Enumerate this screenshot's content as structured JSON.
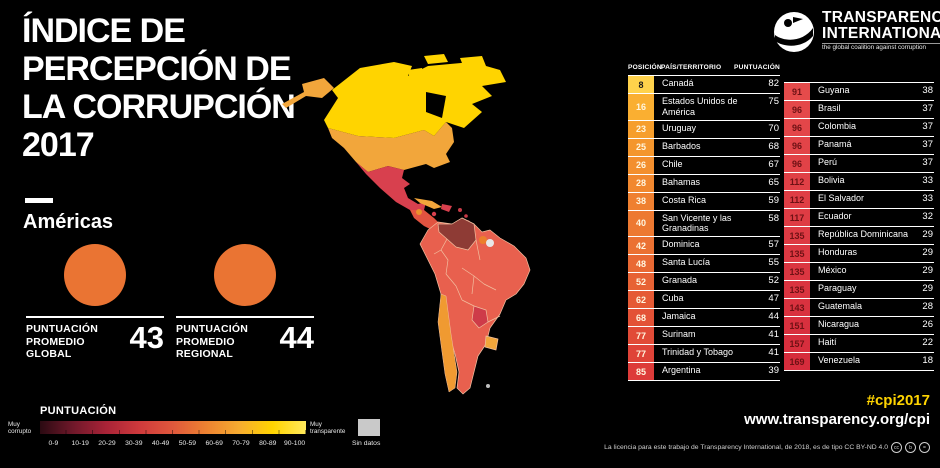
{
  "page": {
    "background": "#000000",
    "accent_yellow": "#FFD400"
  },
  "header": {
    "title_lines": [
      "ÍNDICE DE",
      "PERCEPCIÓN DE",
      "LA CORRUPCIÓN",
      "2017"
    ],
    "region": "Américas"
  },
  "logo": {
    "name1": "TRANSPARENCY",
    "name2": "INTERNATIONAL",
    "tagline": "the global coalition against corruption"
  },
  "averages": [
    {
      "label_lines": [
        "PUNTUACIÓN",
        "PROMEDIO",
        "GLOBAL"
      ],
      "value": "43",
      "circle_color": "#EA7433"
    },
    {
      "label_lines": [
        "PUNTUACIÓN",
        "PROMEDIO",
        "REGIONAL"
      ],
      "value": "44",
      "circle_color": "#EA7433"
    }
  ],
  "table": {
    "headers": {
      "position": "POSICIÓN",
      "country": "PAÍS/TERRITORIO",
      "score": "PUNTUACIÓN"
    },
    "left_rows": [
      {
        "pos": "8",
        "country": "Canadá",
        "score": "82",
        "bg": "#FFD24B",
        "tc": "#1a1a1a"
      },
      {
        "pos": "16",
        "country": "Estados Unidos de América",
        "score": "75",
        "bg": "#FAAF31",
        "tc": "#FFF6DF"
      },
      {
        "pos": "23",
        "country": "Uruguay",
        "score": "70",
        "bg": "#F69E2C",
        "tc": "#FFF6DF"
      },
      {
        "pos": "25",
        "country": "Barbados",
        "score": "68",
        "bg": "#F4962D",
        "tc": "#FFF6DF"
      },
      {
        "pos": "26",
        "country": "Chile",
        "score": "67",
        "bg": "#F38F2E",
        "tc": "#FFF6DF"
      },
      {
        "pos": "28",
        "country": "Bahamas",
        "score": "65",
        "bg": "#F1882F",
        "tc": "#FFF6DF"
      },
      {
        "pos": "38",
        "country": "Costa Rica",
        "score": "59",
        "bg": "#EF8030",
        "tc": "#FFF6DF"
      },
      {
        "pos": "40",
        "country": "San Vicente y las Granadinas",
        "score": "58",
        "bg": "#ED7931",
        "tc": "#FFF6DF"
      },
      {
        "pos": "42",
        "country": "Dominica",
        "score": "57",
        "bg": "#EB7132",
        "tc": "#FFF6DF"
      },
      {
        "pos": "48",
        "country": "Santa Lucía",
        "score": "55",
        "bg": "#E96933",
        "tc": "#FFF6DF"
      },
      {
        "pos": "52",
        "country": "Granada",
        "score": "52",
        "bg": "#E76234",
        "tc": "#FFF6DF"
      },
      {
        "pos": "62",
        "country": "Cuba",
        "score": "47",
        "bg": "#E55A35",
        "tc": "#FFF6DF"
      },
      {
        "pos": "68",
        "country": "Jamaica",
        "score": "44",
        "bg": "#E35236",
        "tc": "#FFF6DF"
      },
      {
        "pos": "77",
        "country": "Surinam",
        "score": "41",
        "bg": "#E14B37",
        "tc": "#FFF6DF"
      },
      {
        "pos": "77",
        "country": "Trinidad y Tobago",
        "score": "41",
        "bg": "#DF4338",
        "tc": "#FFF6DF"
      },
      {
        "pos": "85",
        "country": "Argentina",
        "score": "39",
        "bg": "#DD3B39",
        "tc": "#FFF6DF"
      }
    ],
    "right_rows": [
      {
        "pos": "91",
        "country": "Guyana",
        "score": "38",
        "bg": "#E54B4B",
        "tc": "#6E1114"
      },
      {
        "pos": "96",
        "country": "Brasil",
        "score": "37",
        "bg": "#E4484A",
        "tc": "#6E1114"
      },
      {
        "pos": "96",
        "country": "Colombia",
        "score": "37",
        "bg": "#E34649",
        "tc": "#6E1114"
      },
      {
        "pos": "96",
        "country": "Panamá",
        "score": "37",
        "bg": "#E24448",
        "tc": "#6E1114"
      },
      {
        "pos": "96",
        "country": "Perú",
        "score": "37",
        "bg": "#E14247",
        "tc": "#6E1114"
      },
      {
        "pos": "112",
        "country": "Bolivia",
        "score": "33",
        "bg": "#E04046",
        "tc": "#6E1114"
      },
      {
        "pos": "112",
        "country": "El Salvador",
        "score": "33",
        "bg": "#DF3E45",
        "tc": "#6E1114"
      },
      {
        "pos": "117",
        "country": "Ecuador",
        "score": "32",
        "bg": "#DE3C44",
        "tc": "#6E1114"
      },
      {
        "pos": "135",
        "country": "República Dominicana",
        "score": "29",
        "bg": "#DD3A43",
        "tc": "#6E1114"
      },
      {
        "pos": "135",
        "country": "Honduras",
        "score": "29",
        "bg": "#DC3842",
        "tc": "#6E1114"
      },
      {
        "pos": "135",
        "country": "México",
        "score": "29",
        "bg": "#DB3641",
        "tc": "#6E1114"
      },
      {
        "pos": "135",
        "country": "Paraguay",
        "score": "29",
        "bg": "#DA3440",
        "tc": "#6E1114"
      },
      {
        "pos": "143",
        "country": "Guatemala",
        "score": "28",
        "bg": "#D9323F",
        "tc": "#6E1114"
      },
      {
        "pos": "151",
        "country": "Nicaragua",
        "score": "26",
        "bg": "#D8303E",
        "tc": "#6E1114"
      },
      {
        "pos": "157",
        "country": "Haití",
        "score": "22",
        "bg": "#D72E3D",
        "tc": "#6E1114"
      },
      {
        "pos": "169",
        "country": "Venezuela",
        "score": "18",
        "bg": "#D62C3C",
        "tc": "#6E1114"
      }
    ]
  },
  "legend": {
    "title": "PUNTUACIÓN",
    "left_label_lines": [
      "Muy",
      "corrupto"
    ],
    "right_label_lines": [
      "Muy",
      "transparente"
    ],
    "no_data_label": "Sin datos",
    "no_data_color": "#C9C9C9",
    "gradient_stops": [
      "#2b0a12",
      "#70182a",
      "#a92337",
      "#cf3a3c",
      "#e0583c",
      "#ed8231",
      "#f6ac30",
      "#ffd400",
      "#ffe95c"
    ],
    "ticks": [
      "0-9",
      "10-19",
      "20-29",
      "30-39",
      "40-49",
      "50-59",
      "60-69",
      "70-79",
      "80-89",
      "90-100"
    ]
  },
  "footer": {
    "hashtag": "#cpi2017",
    "hashtag_color": "#FFD400",
    "url": "www.transparency.org/cpi",
    "license": "La licencia para este trabajo de Transparency International, de 2018, es de tipo CC BY-ND 4.0",
    "cc_icons": [
      "cc",
      "b",
      "="
    ]
  },
  "map": {
    "colors": {
      "canada": "#FFD400",
      "alaska": "#F2A63B",
      "usa": "#F2A63B",
      "mexico": "#D8404E",
      "central_america": "#E25340",
      "belize": "#EB8F2C",
      "cuba": "#F2A63B",
      "hispaniola": "#D8404E",
      "antilles": "#C73A47",
      "venezuela": "#8E3B35",
      "south_america": "#E8604E",
      "suriname": "#EB7F2C",
      "french_guiana": "#E8E8E8",
      "paraguay": "#CE3B49",
      "uruguay": "#F2A63B",
      "chile": "#F09A31",
      "falklands": "#BFBFBF",
      "border": "#F2BFA0"
    }
  },
  "chart_data": {
    "type": "table",
    "title": "Índice de Percepción de la Corrupción 2017 — Américas",
    "columns": [
      "POSICIÓN",
      "PAÍS/TERRITORIO",
      "PUNTUACIÓN"
    ],
    "global_average": 43,
    "regional_average": 44,
    "scale": {
      "min_label": "Muy corrupto",
      "max_label": "Muy transparente",
      "buckets": [
        "0-9",
        "10-19",
        "20-29",
        "30-39",
        "40-49",
        "50-59",
        "60-69",
        "70-79",
        "80-89",
        "90-100"
      ]
    },
    "rows": [
      [
        8,
        "Canadá",
        82
      ],
      [
        16,
        "Estados Unidos de América",
        75
      ],
      [
        23,
        "Uruguay",
        70
      ],
      [
        25,
        "Barbados",
        68
      ],
      [
        26,
        "Chile",
        67
      ],
      [
        28,
        "Bahamas",
        65
      ],
      [
        38,
        "Costa Rica",
        59
      ],
      [
        40,
        "San Vicente y las Granadinas",
        58
      ],
      [
        42,
        "Dominica",
        57
      ],
      [
        48,
        "Santa Lucía",
        55
      ],
      [
        52,
        "Granada",
        52
      ],
      [
        62,
        "Cuba",
        47
      ],
      [
        68,
        "Jamaica",
        44
      ],
      [
        77,
        "Surinam",
        41
      ],
      [
        77,
        "Trinidad y Tobago",
        41
      ],
      [
        85,
        "Argentina",
        39
      ],
      [
        91,
        "Guyana",
        38
      ],
      [
        96,
        "Brasil",
        37
      ],
      [
        96,
        "Colombia",
        37
      ],
      [
        96,
        "Panamá",
        37
      ],
      [
        96,
        "Perú",
        37
      ],
      [
        112,
        "Bolivia",
        33
      ],
      [
        112,
        "El Salvador",
        33
      ],
      [
        117,
        "Ecuador",
        32
      ],
      [
        135,
        "República Dominicana",
        29
      ],
      [
        135,
        "Honduras",
        29
      ],
      [
        135,
        "México",
        29
      ],
      [
        135,
        "Paraguay",
        29
      ],
      [
        143,
        "Guatemala",
        28
      ],
      [
        151,
        "Nicaragua",
        26
      ],
      [
        157,
        "Haití",
        22
      ],
      [
        169,
        "Venezuela",
        18
      ]
    ]
  }
}
